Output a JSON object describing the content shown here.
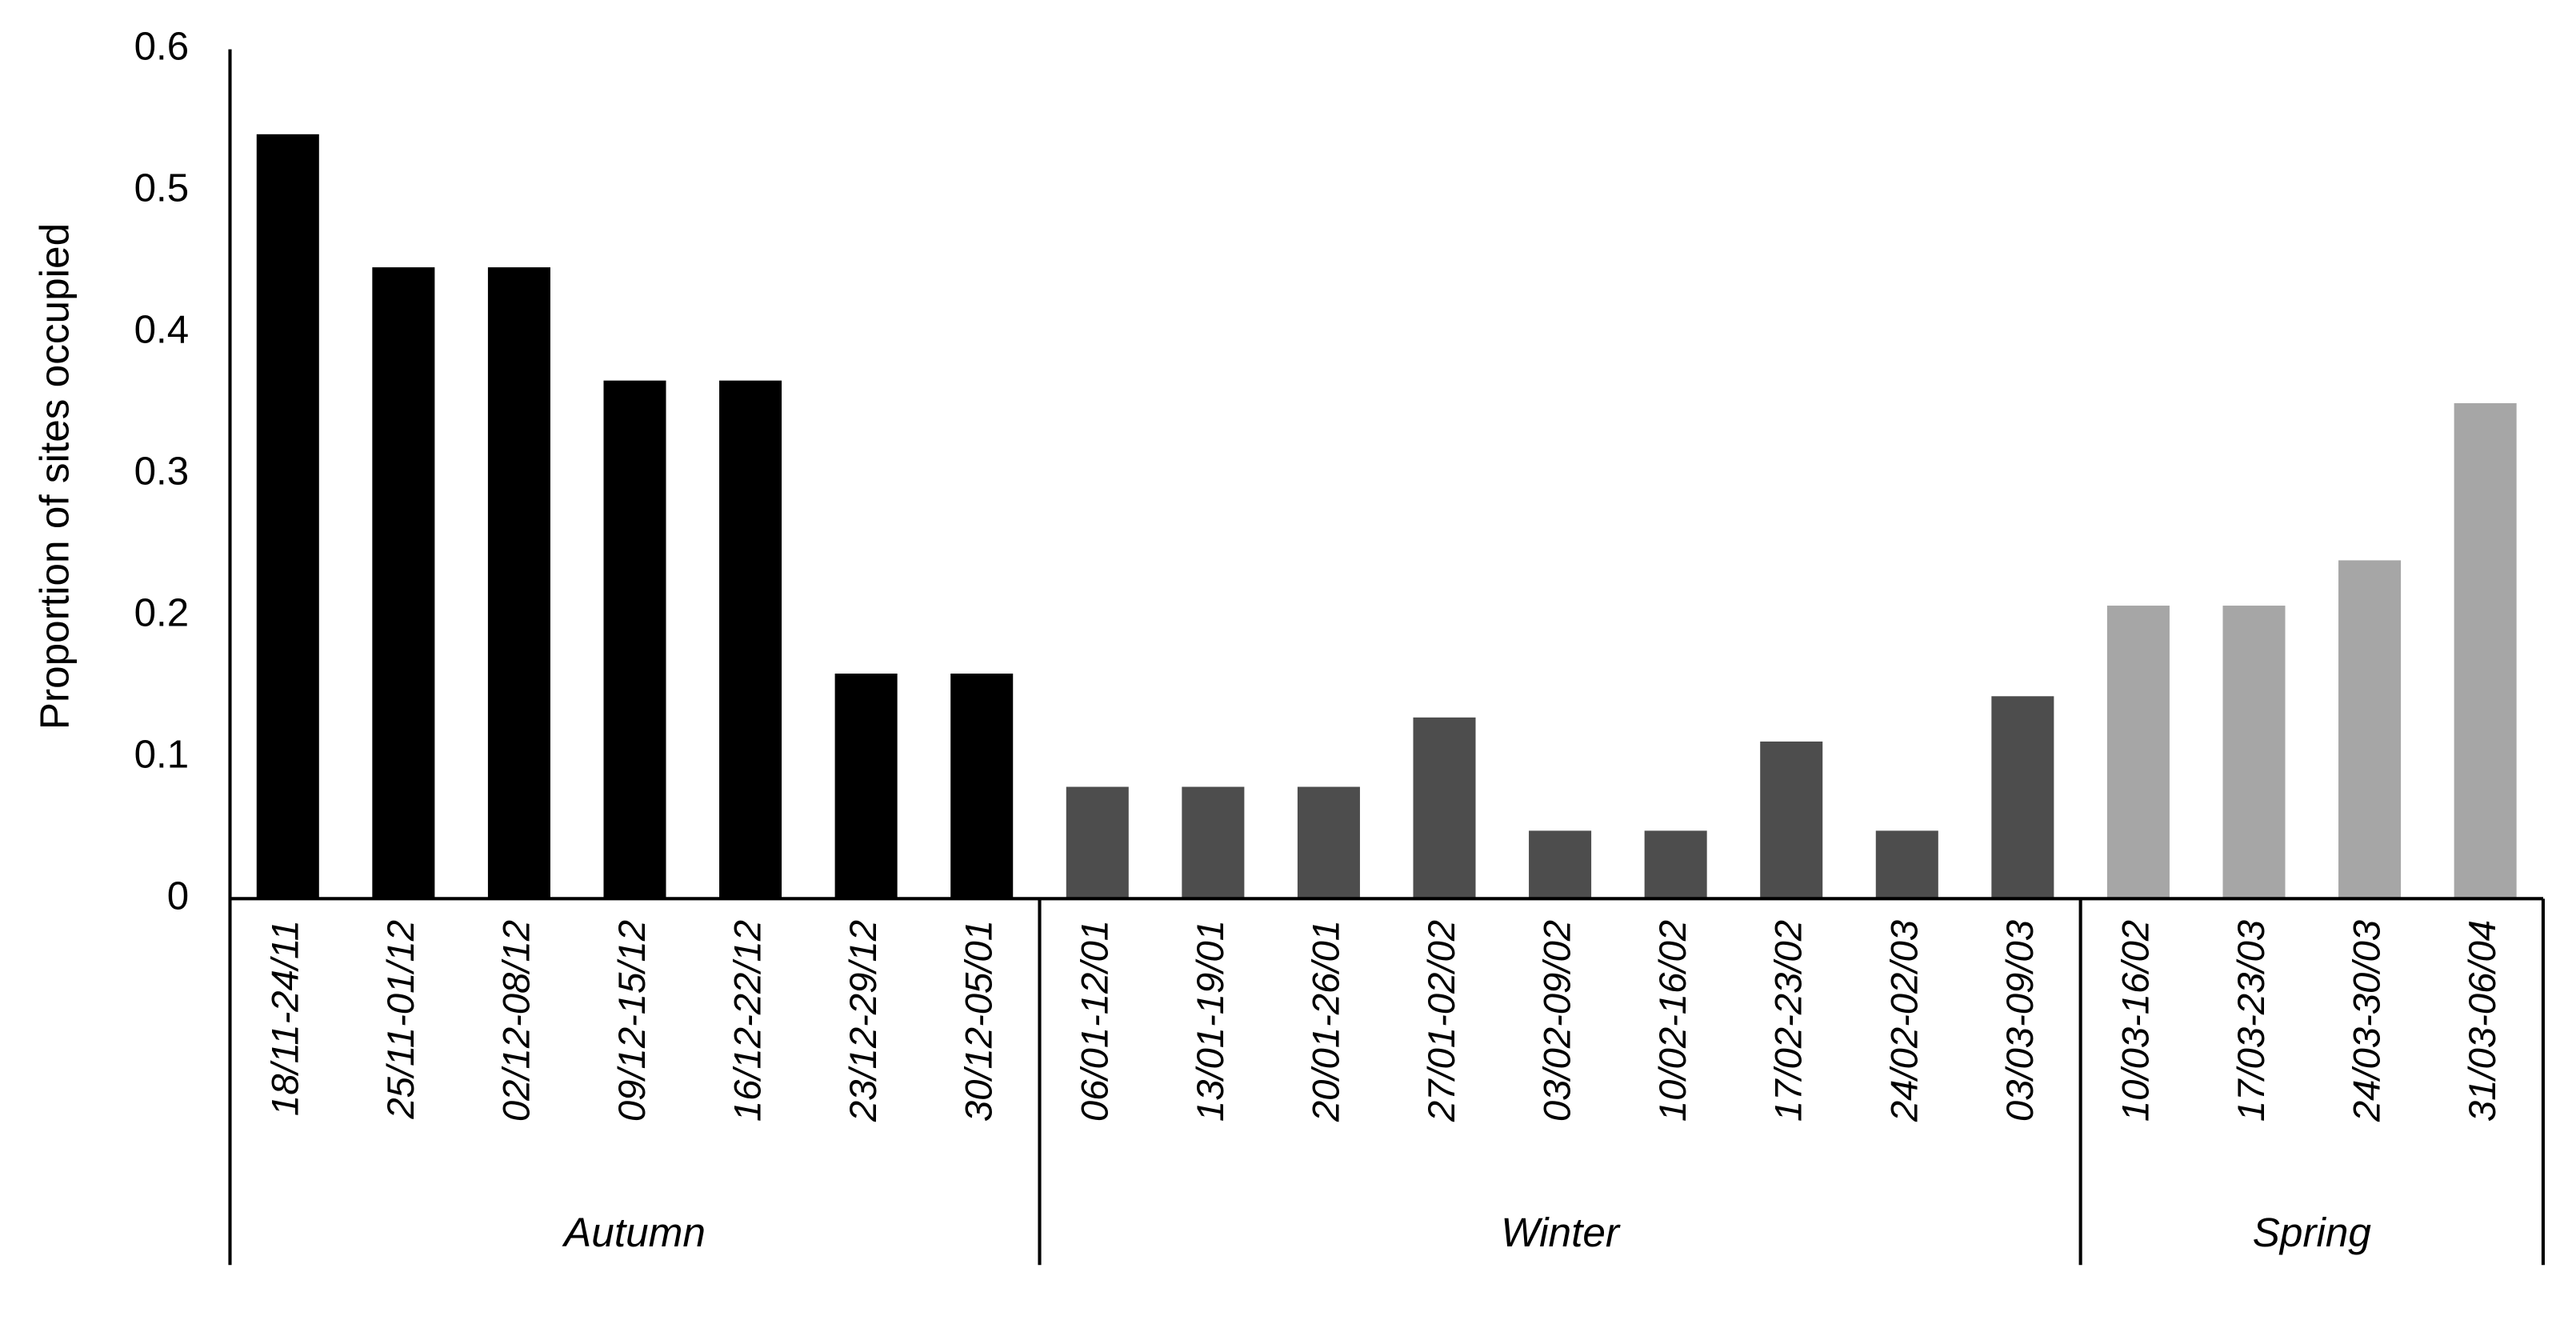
{
  "chart_data": {
    "type": "bar",
    "y_label": "Proportion of sites occupied",
    "ylim": [
      0,
      0.6
    ],
    "yticks": [
      0,
      0.1,
      0.2,
      0.3,
      0.4,
      0.5,
      0.6
    ],
    "groups": [
      {
        "name": "Autumn",
        "color": "#000000",
        "categories": [
          "18/11-24/11",
          "25/11-01/12",
          "02/12-08/12",
          "09/12-15/12",
          "16/12-22/12",
          "23/12-29/12",
          "30/12-05/01"
        ],
        "values": [
          0.54,
          0.446,
          0.446,
          0.366,
          0.366,
          0.159,
          0.159
        ]
      },
      {
        "name": "Winter",
        "color": "#4d4d4d",
        "categories": [
          "06/01-12/01",
          "13/01-19/01",
          "20/01-26/01",
          "27/01-02/02",
          "03/02-09/02",
          "10/02-16/02",
          "17/02-23/02",
          "24/02-02/03",
          "03/03-09/03"
        ],
        "values": [
          0.079,
          0.079,
          0.079,
          0.128,
          0.048,
          0.048,
          0.111,
          0.048,
          0.143
        ]
      },
      {
        "name": "Spring",
        "color": "#a6a6a6",
        "categories": [
          "10/03-16/02",
          "17/03-23/03",
          "24/03-30/03",
          "31/03-06/04"
        ],
        "values": [
          0.207,
          0.207,
          0.239,
          0.35
        ]
      }
    ]
  }
}
